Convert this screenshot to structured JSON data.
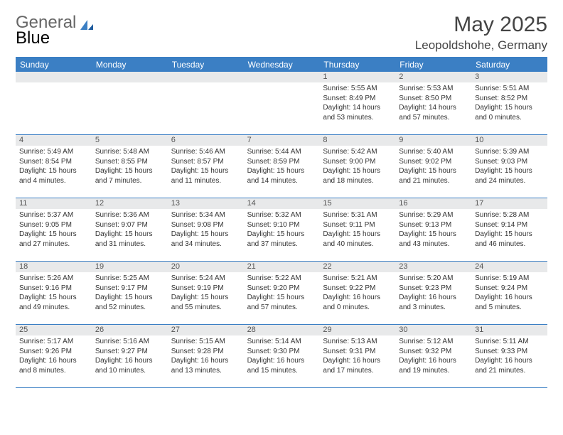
{
  "brand": {
    "part1": "General",
    "part2": "Blue"
  },
  "title": "May 2025",
  "location": "Leopoldshohe, Germany",
  "accent_color": "#3b7fc4",
  "header_bg": "#3b7fc4",
  "day_number_bg": "#e8e9ea",
  "weekdays": [
    "Sunday",
    "Monday",
    "Tuesday",
    "Wednesday",
    "Thursday",
    "Friday",
    "Saturday"
  ],
  "weeks": [
    [
      {
        "n": "",
        "sr": "",
        "ss": "",
        "dl": ""
      },
      {
        "n": "",
        "sr": "",
        "ss": "",
        "dl": ""
      },
      {
        "n": "",
        "sr": "",
        "ss": "",
        "dl": ""
      },
      {
        "n": "",
        "sr": "",
        "ss": "",
        "dl": ""
      },
      {
        "n": "1",
        "sr": "Sunrise: 5:55 AM",
        "ss": "Sunset: 8:49 PM",
        "dl": "Daylight: 14 hours and 53 minutes."
      },
      {
        "n": "2",
        "sr": "Sunrise: 5:53 AM",
        "ss": "Sunset: 8:50 PM",
        "dl": "Daylight: 14 hours and 57 minutes."
      },
      {
        "n": "3",
        "sr": "Sunrise: 5:51 AM",
        "ss": "Sunset: 8:52 PM",
        "dl": "Daylight: 15 hours and 0 minutes."
      }
    ],
    [
      {
        "n": "4",
        "sr": "Sunrise: 5:49 AM",
        "ss": "Sunset: 8:54 PM",
        "dl": "Daylight: 15 hours and 4 minutes."
      },
      {
        "n": "5",
        "sr": "Sunrise: 5:48 AM",
        "ss": "Sunset: 8:55 PM",
        "dl": "Daylight: 15 hours and 7 minutes."
      },
      {
        "n": "6",
        "sr": "Sunrise: 5:46 AM",
        "ss": "Sunset: 8:57 PM",
        "dl": "Daylight: 15 hours and 11 minutes."
      },
      {
        "n": "7",
        "sr": "Sunrise: 5:44 AM",
        "ss": "Sunset: 8:59 PM",
        "dl": "Daylight: 15 hours and 14 minutes."
      },
      {
        "n": "8",
        "sr": "Sunrise: 5:42 AM",
        "ss": "Sunset: 9:00 PM",
        "dl": "Daylight: 15 hours and 18 minutes."
      },
      {
        "n": "9",
        "sr": "Sunrise: 5:40 AM",
        "ss": "Sunset: 9:02 PM",
        "dl": "Daylight: 15 hours and 21 minutes."
      },
      {
        "n": "10",
        "sr": "Sunrise: 5:39 AM",
        "ss": "Sunset: 9:03 PM",
        "dl": "Daylight: 15 hours and 24 minutes."
      }
    ],
    [
      {
        "n": "11",
        "sr": "Sunrise: 5:37 AM",
        "ss": "Sunset: 9:05 PM",
        "dl": "Daylight: 15 hours and 27 minutes."
      },
      {
        "n": "12",
        "sr": "Sunrise: 5:36 AM",
        "ss": "Sunset: 9:07 PM",
        "dl": "Daylight: 15 hours and 31 minutes."
      },
      {
        "n": "13",
        "sr": "Sunrise: 5:34 AM",
        "ss": "Sunset: 9:08 PM",
        "dl": "Daylight: 15 hours and 34 minutes."
      },
      {
        "n": "14",
        "sr": "Sunrise: 5:32 AM",
        "ss": "Sunset: 9:10 PM",
        "dl": "Daylight: 15 hours and 37 minutes."
      },
      {
        "n": "15",
        "sr": "Sunrise: 5:31 AM",
        "ss": "Sunset: 9:11 PM",
        "dl": "Daylight: 15 hours and 40 minutes."
      },
      {
        "n": "16",
        "sr": "Sunrise: 5:29 AM",
        "ss": "Sunset: 9:13 PM",
        "dl": "Daylight: 15 hours and 43 minutes."
      },
      {
        "n": "17",
        "sr": "Sunrise: 5:28 AM",
        "ss": "Sunset: 9:14 PM",
        "dl": "Daylight: 15 hours and 46 minutes."
      }
    ],
    [
      {
        "n": "18",
        "sr": "Sunrise: 5:26 AM",
        "ss": "Sunset: 9:16 PM",
        "dl": "Daylight: 15 hours and 49 minutes."
      },
      {
        "n": "19",
        "sr": "Sunrise: 5:25 AM",
        "ss": "Sunset: 9:17 PM",
        "dl": "Daylight: 15 hours and 52 minutes."
      },
      {
        "n": "20",
        "sr": "Sunrise: 5:24 AM",
        "ss": "Sunset: 9:19 PM",
        "dl": "Daylight: 15 hours and 55 minutes."
      },
      {
        "n": "21",
        "sr": "Sunrise: 5:22 AM",
        "ss": "Sunset: 9:20 PM",
        "dl": "Daylight: 15 hours and 57 minutes."
      },
      {
        "n": "22",
        "sr": "Sunrise: 5:21 AM",
        "ss": "Sunset: 9:22 PM",
        "dl": "Daylight: 16 hours and 0 minutes."
      },
      {
        "n": "23",
        "sr": "Sunrise: 5:20 AM",
        "ss": "Sunset: 9:23 PM",
        "dl": "Daylight: 16 hours and 3 minutes."
      },
      {
        "n": "24",
        "sr": "Sunrise: 5:19 AM",
        "ss": "Sunset: 9:24 PM",
        "dl": "Daylight: 16 hours and 5 minutes."
      }
    ],
    [
      {
        "n": "25",
        "sr": "Sunrise: 5:17 AM",
        "ss": "Sunset: 9:26 PM",
        "dl": "Daylight: 16 hours and 8 minutes."
      },
      {
        "n": "26",
        "sr": "Sunrise: 5:16 AM",
        "ss": "Sunset: 9:27 PM",
        "dl": "Daylight: 16 hours and 10 minutes."
      },
      {
        "n": "27",
        "sr": "Sunrise: 5:15 AM",
        "ss": "Sunset: 9:28 PM",
        "dl": "Daylight: 16 hours and 13 minutes."
      },
      {
        "n": "28",
        "sr": "Sunrise: 5:14 AM",
        "ss": "Sunset: 9:30 PM",
        "dl": "Daylight: 16 hours and 15 minutes."
      },
      {
        "n": "29",
        "sr": "Sunrise: 5:13 AM",
        "ss": "Sunset: 9:31 PM",
        "dl": "Daylight: 16 hours and 17 minutes."
      },
      {
        "n": "30",
        "sr": "Sunrise: 5:12 AM",
        "ss": "Sunset: 9:32 PM",
        "dl": "Daylight: 16 hours and 19 minutes."
      },
      {
        "n": "31",
        "sr": "Sunrise: 5:11 AM",
        "ss": "Sunset: 9:33 PM",
        "dl": "Daylight: 16 hours and 21 minutes."
      }
    ]
  ]
}
